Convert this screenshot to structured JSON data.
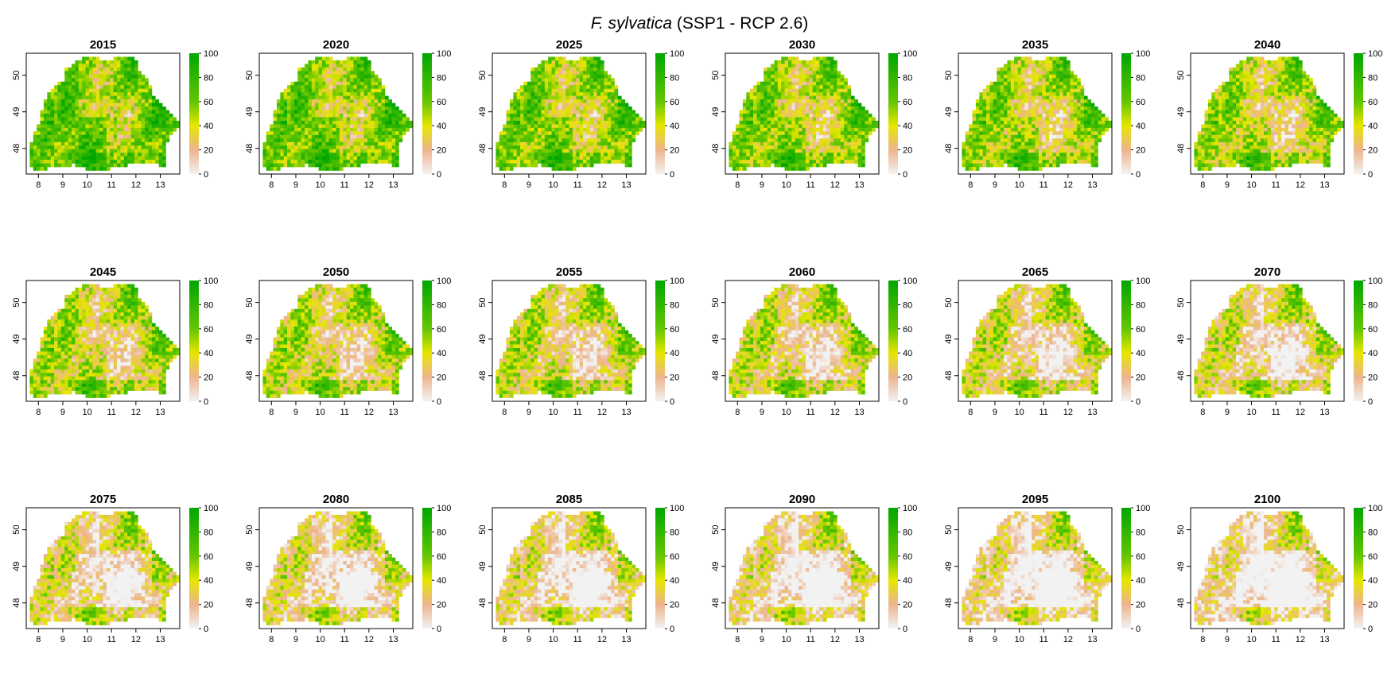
{
  "title": {
    "species": "F. sylvatica",
    "scenario": "(SSP1 - RCP 2.6)"
  },
  "chart_data": {
    "type": "heatmap",
    "title": "F. sylvatica (SSP1 - RCP 2.6)",
    "panels": [
      "2015",
      "2020",
      "2025",
      "2030",
      "2035",
      "2040",
      "2045",
      "2050",
      "2055",
      "2060",
      "2065",
      "2070",
      "2075",
      "2080",
      "2085",
      "2090",
      "2095",
      "2100"
    ],
    "x_ticks": [
      "8",
      "9",
      "10",
      "11",
      "12",
      "13"
    ],
    "y_ticks": [
      "48",
      "49",
      "50"
    ],
    "xlim": [
      7.5,
      13.8
    ],
    "ylim": [
      47.3,
      50.6
    ],
    "colorbar": {
      "range": [
        0,
        100
      ],
      "ticks": [
        "0",
        "20",
        "40",
        "60",
        "80",
        "100"
      ],
      "colors": [
        "#f2f2f2",
        "#edb48e",
        "#e6e600",
        "#63c600",
        "#00a600"
      ]
    }
  }
}
